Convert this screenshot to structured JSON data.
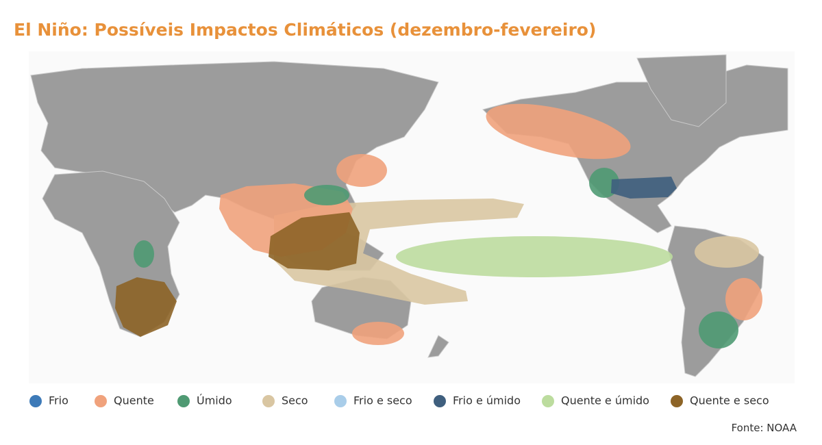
{
  "title": "El Niño: Possíveis Impactos Climáticos (dezembro-fevereiro)",
  "legend": [
    {
      "label": "Frio",
      "color": "#3d7ab8"
    },
    {
      "label": "Quente",
      "color": "#f0a27c"
    },
    {
      "label": "Úmido",
      "color": "#4f9a73"
    },
    {
      "label": "Seco",
      "color": "#d9c6a2"
    },
    {
      "label": "Frio e seco",
      "color": "#a9cde9"
    },
    {
      "label": "Frio e úmido",
      "color": "#3f5f7e"
    },
    {
      "label": "Quente e úmido",
      "color": "#bcdc9e"
    },
    {
      "label": "Quente e seco",
      "color": "#8d6427"
    }
  ],
  "source": "Fonte: NOAA"
}
